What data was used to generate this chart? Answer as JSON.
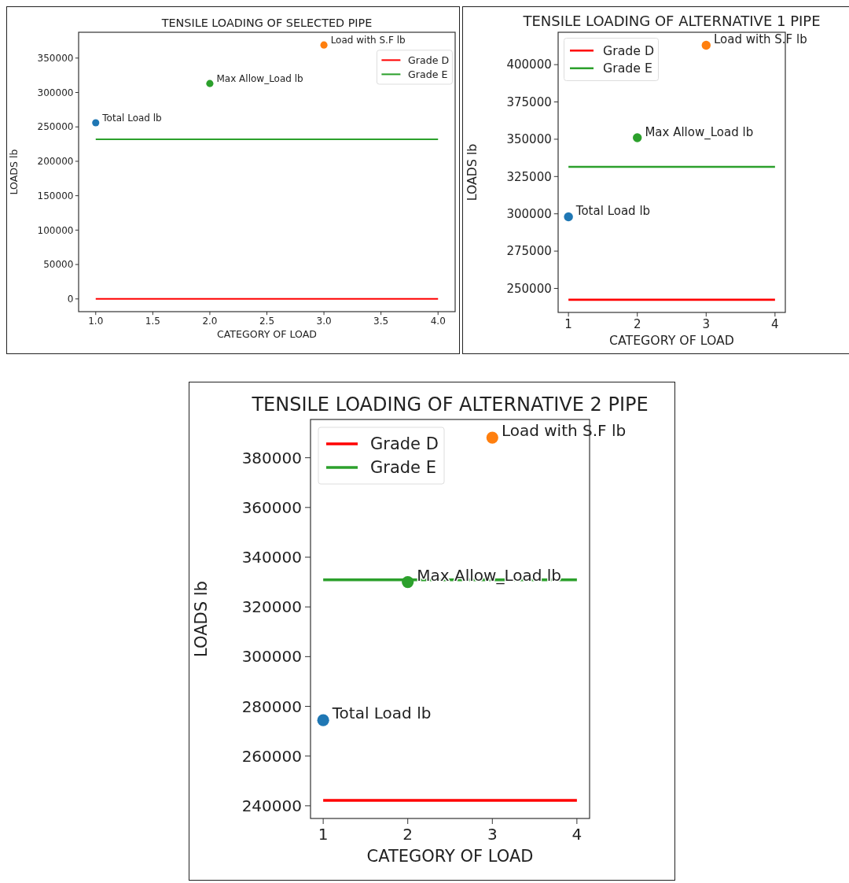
{
  "chart_data": [
    {
      "type": "scatter",
      "title": "TENSILE LOADING OF SELECTED PIPE",
      "xlabel": "CATEGORY OF LOAD",
      "ylabel": "LOADS  lb",
      "xlim": [
        0.85,
        4.15
      ],
      "xticks": [
        {
          "value": 1,
          "label": "1.0"
        },
        {
          "value": 1.5,
          "label": "1.5"
        },
        {
          "value": 2,
          "label": "2.0"
        },
        {
          "value": 2.5,
          "label": "2.5"
        },
        {
          "value": 3,
          "label": "3.0"
        },
        {
          "value": 3.5,
          "label": "3.5"
        },
        {
          "value": 4,
          "label": "4.0"
        }
      ],
      "ylim": [
        -18500,
        387500
      ],
      "yticks": [
        0,
        50000,
        100000,
        150000,
        200000,
        250000,
        300000,
        350000
      ],
      "grid": false,
      "legend": "top right",
      "series": [
        {
          "name": "Grade D",
          "type": "line",
          "color": "#ff0000",
          "x": [
            1,
            4
          ],
          "values": [
            0,
            0
          ]
        },
        {
          "name": "Grade E",
          "type": "line",
          "color": "#2ca02c",
          "x": [
            1,
            4
          ],
          "values": [
            232000,
            232000
          ]
        },
        {
          "name": "Total Load lb",
          "marker": "circle",
          "color": "#1f77b4",
          "x": [
            1
          ],
          "values": [
            256000
          ]
        },
        {
          "name": "Max Allow_Load lb",
          "marker": "circle",
          "color": "#2ca02c",
          "x": [
            2
          ],
          "values": [
            313000
          ]
        },
        {
          "name": "Load with S.F lb",
          "marker": "circle",
          "color": "#ff7f0e",
          "x": [
            3
          ],
          "values": [
            369000
          ]
        }
      ]
    },
    {
      "type": "scatter",
      "title": "TENSILE LOADING OF ALTERNATIVE 1 PIPE",
      "xlabel": "CATEGORY OF LOAD",
      "ylabel": "LOADS  lb",
      "xlim": [
        0.85,
        4.15
      ],
      "xticks": [
        1,
        2,
        3,
        4
      ],
      "ylim": [
        233900,
        421700
      ],
      "yticks": [
        250000,
        275000,
        300000,
        325000,
        350000,
        375000,
        400000
      ],
      "grid": false,
      "legend": "top left",
      "series": [
        {
          "name": "Grade D",
          "type": "line",
          "color": "#ff0000",
          "x": [
            1,
            4
          ],
          "values": [
            242400,
            242400
          ]
        },
        {
          "name": "Grade E",
          "type": "line",
          "color": "#2ca02c",
          "x": [
            1,
            4
          ],
          "values": [
            331500,
            331500
          ]
        },
        {
          "name": "Total Load lb",
          "marker": "circle",
          "color": "#1f77b4",
          "x": [
            1
          ],
          "values": [
            298000
          ]
        },
        {
          "name": "Max Allow_Load lb",
          "marker": "circle",
          "color": "#2ca02c",
          "x": [
            2
          ],
          "values": [
            351000
          ]
        },
        {
          "name": "Load with S.F lb",
          "marker": "circle",
          "color": "#ff7f0e",
          "x": [
            3
          ],
          "values": [
            413000
          ]
        }
      ]
    },
    {
      "type": "scatter",
      "title": "TENSILE LOADING OF ALTERNATIVE 2 PIPE",
      "xlabel": "CATEGORY OF LOAD",
      "ylabel": "LOADS  lb",
      "xlim": [
        0.85,
        4.15
      ],
      "xticks": [
        1,
        2,
        3,
        4
      ],
      "ylim": [
        234900,
        395400
      ],
      "yticks": [
        240000,
        260000,
        280000,
        300000,
        320000,
        340000,
        360000,
        380000
      ],
      "grid": false,
      "legend": "top left",
      "series": [
        {
          "name": "Grade D",
          "type": "line",
          "color": "#ff0000",
          "x": [
            1,
            4
          ],
          "values": [
            242200,
            242200
          ]
        },
        {
          "name": "Grade E",
          "type": "line",
          "color": "#2ca02c",
          "x": [
            1,
            4
          ],
          "values": [
            330900,
            330900
          ]
        },
        {
          "name": "Total Load lb",
          "marker": "circle",
          "color": "#1f77b4",
          "x": [
            1
          ],
          "values": [
            274400
          ]
        },
        {
          "name": "Max Allow_Load lb",
          "marker": "circle",
          "color": "#2ca02c",
          "x": [
            2
          ],
          "values": [
            330000
          ]
        },
        {
          "name": "Load with S.F lb",
          "marker": "circle",
          "color": "#ff7f0e",
          "x": [
            3
          ],
          "values": [
            388100
          ]
        }
      ]
    }
  ]
}
